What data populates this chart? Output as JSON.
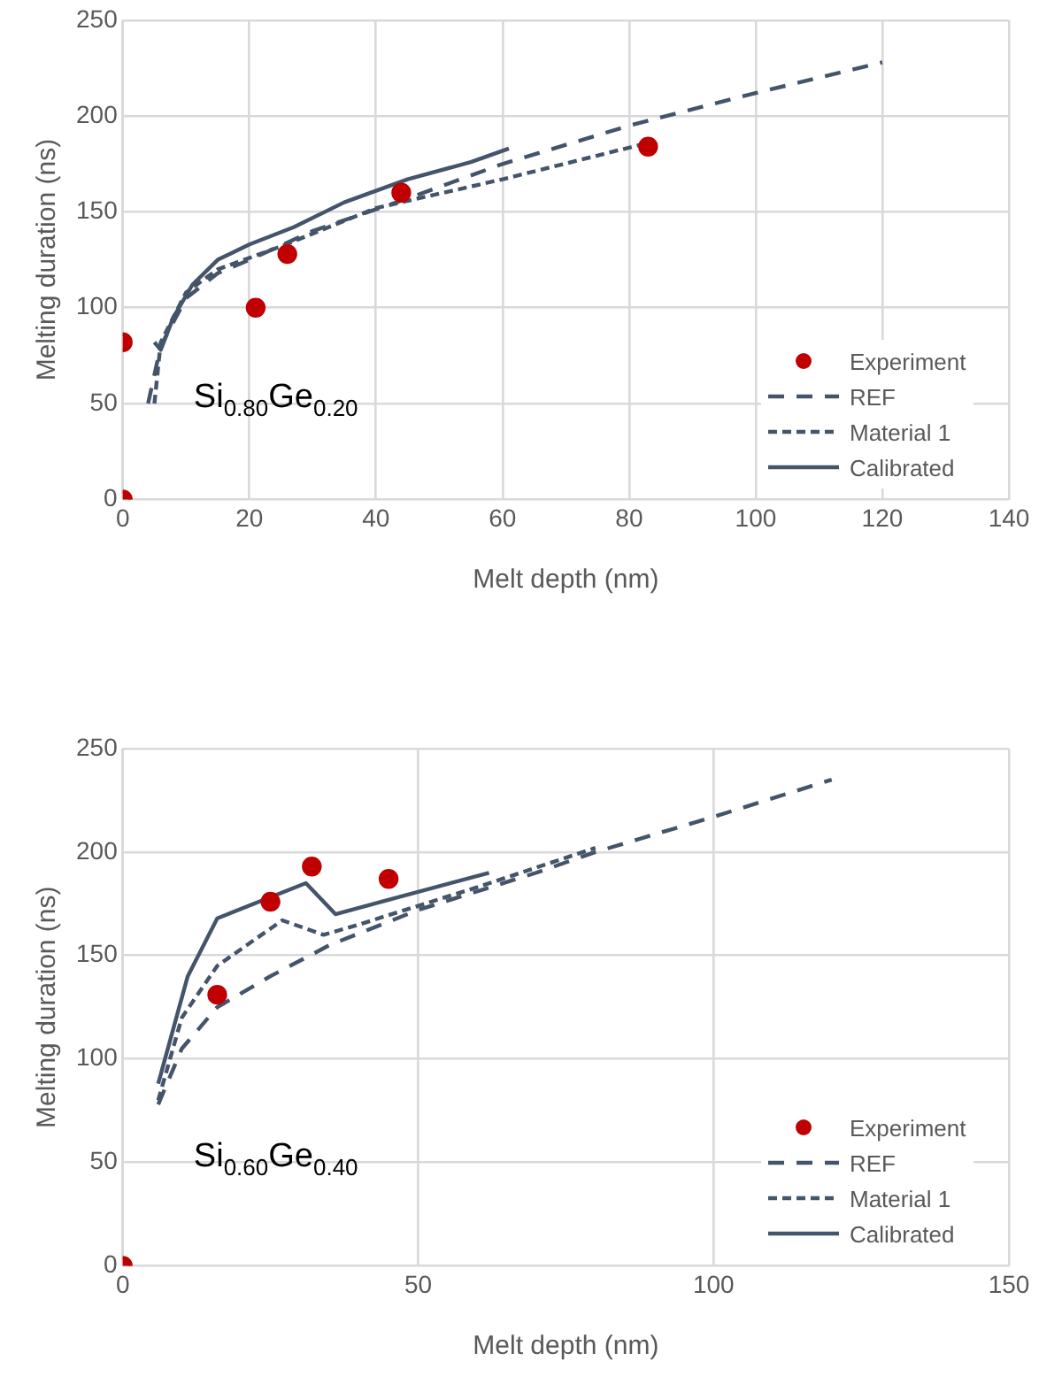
{
  "chart_data": [
    {
      "type": "line",
      "xlabel": "Melt depth (nm)",
      "ylabel": "Melting duration (ns)",
      "annotations": [
        "Si$_{0.80}$Ge$_{0.20}$"
      ],
      "xlim": [
        0,
        140
      ],
      "xticks": [
        0,
        20,
        40,
        60,
        80,
        100,
        120,
        140
      ],
      "ylim": [
        0,
        250
      ],
      "yticks": [
        0,
        50,
        100,
        150,
        200,
        250
      ],
      "grid": true,
      "legend": "bottom right",
      "series": [
        {
          "name": "Experiment",
          "type": "scatter",
          "marker": "circle",
          "color": "#c00000",
          "x": [
            0,
            0,
            21,
            26,
            44,
            83
          ],
          "values": [
            82,
            0,
            100,
            128,
            160,
            184
          ]
        },
        {
          "name": "REF",
          "type": "line",
          "line_style": "dashed",
          "marker": "none",
          "color": "#44546a",
          "x": [
            4,
            6,
            10,
            15,
            20,
            30,
            45,
            60,
            80,
            100,
            120
          ],
          "values": [
            50,
            80,
            105,
            118,
            125,
            140,
            157,
            175,
            195,
            212,
            228
          ]
        },
        {
          "name": "Material 1",
          "type": "line",
          "line_style": "dotted",
          "marker": "none",
          "color": "#44546a",
          "x": [
            5,
            6,
            10,
            15,
            25,
            40,
            60,
            83
          ],
          "values": [
            50,
            82,
            108,
            120,
            132,
            152,
            167,
            186
          ]
        },
        {
          "name": "Calibrated",
          "type": "line",
          "line_style": "solid",
          "marker": "none",
          "color": "#44546a",
          "x": [
            5,
            6,
            8,
            11,
            15,
            20,
            27,
            35,
            45,
            55,
            61
          ],
          "values": [
            82,
            78,
            95,
            112,
            125,
            133,
            142,
            155,
            167,
            176,
            183
          ]
        }
      ]
    },
    {
      "type": "line",
      "xlabel": "Melt depth (nm)",
      "ylabel": "Melting duration (ns)",
      "annotations": [
        "Si$_{0.60}$Ge$_{0.40}$"
      ],
      "xlim": [
        0,
        150
      ],
      "xticks": [
        0,
        50,
        100,
        150
      ],
      "ylim": [
        0,
        250
      ],
      "yticks": [
        0,
        50,
        100,
        150,
        200,
        250
      ],
      "grid": true,
      "legend": "bottom right",
      "series": [
        {
          "name": "Experiment",
          "type": "scatter",
          "marker": "circle",
          "color": "#c00000",
          "x": [
            0,
            16,
            25,
            32,
            45
          ],
          "values": [
            0,
            131,
            176,
            193,
            187
          ]
        },
        {
          "name": "REF",
          "type": "line",
          "line_style": "dashed",
          "marker": "none",
          "color": "#44546a",
          "x": [
            6,
            10,
            16,
            25,
            35,
            50,
            70,
            80,
            100,
            120
          ],
          "values": [
            78,
            105,
            125,
            140,
            155,
            172,
            190,
            200,
            217,
            235
          ]
        },
        {
          "name": "Material 1",
          "type": "line",
          "line_style": "dotted",
          "marker": "none",
          "color": "#44546a",
          "x": [
            6,
            10,
            16,
            27,
            34,
            40,
            60,
            80
          ],
          "values": [
            80,
            120,
            145,
            167,
            160,
            165,
            183,
            202
          ]
        },
        {
          "name": "Calibrated",
          "type": "line",
          "line_style": "solid",
          "marker": "none",
          "color": "#44546a",
          "x": [
            6,
            11,
            16,
            31,
            36,
            62
          ],
          "values": [
            88,
            140,
            168,
            185,
            170,
            190
          ]
        }
      ]
    }
  ]
}
